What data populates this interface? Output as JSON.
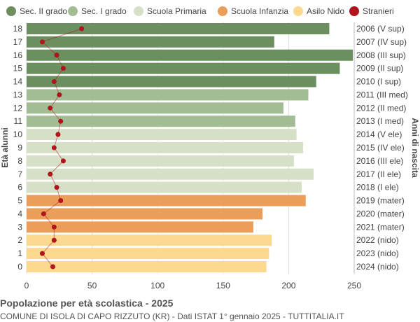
{
  "title": "Popolazione per età scolastica - 2025",
  "subtitle": "COMUNE DI ISOLA DI CAPO RIZZUTO (KR) - Dati ISTAT 1° gennaio 2025 - TUTTITALIA.IT",
  "chart_data": {
    "type": "bar",
    "orientation": "horizontal",
    "ylabel": "Età alunni",
    "ylabel_right": "Anni di nascita",
    "xlim": [
      0,
      250
    ],
    "xticks": [
      0,
      50,
      100,
      150,
      200,
      250
    ],
    "grid": true,
    "legend_position": "top",
    "legend": [
      {
        "name": "Sec. II grado",
        "color": "#6b8f5e"
      },
      {
        "name": "Sec. I grado",
        "color": "#a2bc94"
      },
      {
        "name": "Scuola Primaria",
        "color": "#d5e0c6"
      },
      {
        "name": "Scuola Infanzia",
        "color": "#eb9e59"
      },
      {
        "name": "Asilo Nido",
        "color": "#fdd88f"
      },
      {
        "name": "Stranieri",
        "color": "#b0141c"
      }
    ],
    "categories": [
      "18",
      "17",
      "16",
      "15",
      "14",
      "13",
      "12",
      "11",
      "10",
      "9",
      "8",
      "7",
      "6",
      "5",
      "4",
      "3",
      "2",
      "1",
      "0"
    ],
    "birth_years": [
      "2006 (V sup)",
      "2007 (IV sup)",
      "2008 (III sup)",
      "2009 (II sup)",
      "2010 (I sup)",
      "2011 (III med)",
      "2012 (II med)",
      "2013 (I med)",
      "2014 (V ele)",
      "2015 (IV ele)",
      "2016 (III ele)",
      "2017 (II ele)",
      "2018 (I ele)",
      "2019 (mater)",
      "2020 (mater)",
      "2021 (mater)",
      "2022 (nido)",
      "2023 (nido)",
      "2024 (nido)"
    ],
    "groups": [
      0,
      0,
      0,
      0,
      0,
      1,
      1,
      1,
      2,
      2,
      2,
      2,
      2,
      3,
      3,
      3,
      4,
      4,
      4
    ],
    "values": [
      231,
      189,
      249,
      239,
      221,
      215,
      196,
      205,
      206,
      211,
      204,
      219,
      210,
      213,
      180,
      173,
      187,
      185,
      183
    ],
    "stranieri": [
      42,
      12,
      23,
      28,
      21,
      25,
      18,
      26,
      24,
      21,
      28,
      18,
      23,
      26,
      13,
      21,
      21,
      12,
      20
    ]
  }
}
